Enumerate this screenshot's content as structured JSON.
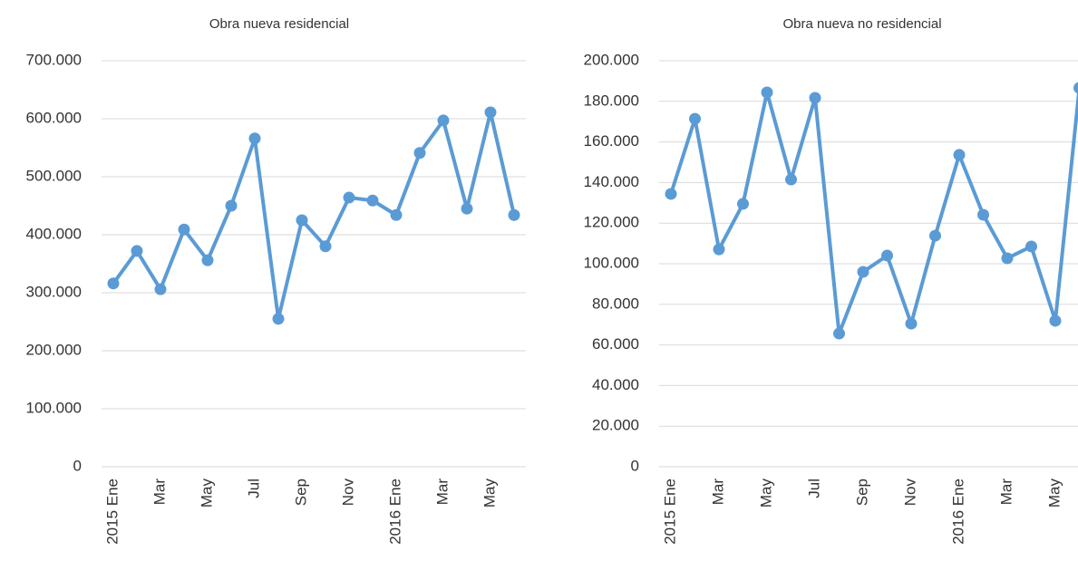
{
  "chart_data": [
    {
      "type": "line",
      "title": "Obra nueva residencial",
      "categories": [
        "2015 Ene",
        null,
        "Mar",
        null,
        "May",
        null,
        "Jul",
        null,
        "Sep",
        null,
        "Nov",
        null,
        "2016 Ene",
        null,
        "Mar",
        null,
        "May",
        null
      ],
      "series": [
        {
          "color": "#5b9bd5",
          "values": [
            316000,
            372000,
            306000,
            409000,
            356000,
            450000,
            566000,
            255000,
            425000,
            380000,
            464000,
            459000,
            434000,
            541000,
            597000,
            445000,
            611000,
            434000
          ]
        }
      ],
      "ylim": [
        0,
        700000
      ],
      "yticks": [
        0,
        {
          "value": 100000,
          "label": "100.000"
        },
        {
          "value": 200000,
          "label": "200.000"
        },
        {
          "value": 300000,
          "label": "300.000"
        },
        {
          "value": 400000,
          "label": "400.000"
        },
        {
          "value": 500000,
          "label": "500.000"
        },
        {
          "value": 600000,
          "label": "600.000"
        },
        {
          "value": 700000,
          "label": "700.000"
        }
      ],
      "grid": true
    },
    {
      "type": "line",
      "title": "Obra nueva no residencial",
      "categories": [
        "2015 Ene",
        null,
        "Mar",
        null,
        "May",
        null,
        "Jul",
        null,
        "Sep",
        null,
        "Nov",
        null,
        "2016 Ene",
        null,
        "Mar",
        null,
        "May",
        null
      ],
      "series": [
        {
          "color": "#5b9bd5",
          "values": [
            134400,
            171400,
            107100,
            129500,
            184400,
            141500,
            181700,
            65600,
            96000,
            104000,
            70500,
            113800,
            153600,
            124100,
            102700,
            108500,
            71900,
            186600
          ]
        }
      ],
      "ylim": [
        0,
        200000
      ],
      "yticks": [
        0,
        {
          "value": 20000,
          "label": "20.000"
        },
        {
          "value": 40000,
          "label": "40.000"
        },
        {
          "value": 60000,
          "label": "60.000"
        },
        {
          "value": 80000,
          "label": "80.000"
        },
        {
          "value": 100000,
          "label": "100.000"
        },
        {
          "value": 120000,
          "label": "120.000"
        },
        {
          "value": 140000,
          "label": "140.000"
        },
        {
          "value": 160000,
          "label": "160.000"
        },
        {
          "value": 180000,
          "label": "180.000"
        },
        {
          "value": 200000,
          "label": "200.000"
        }
      ],
      "grid": true
    }
  ]
}
